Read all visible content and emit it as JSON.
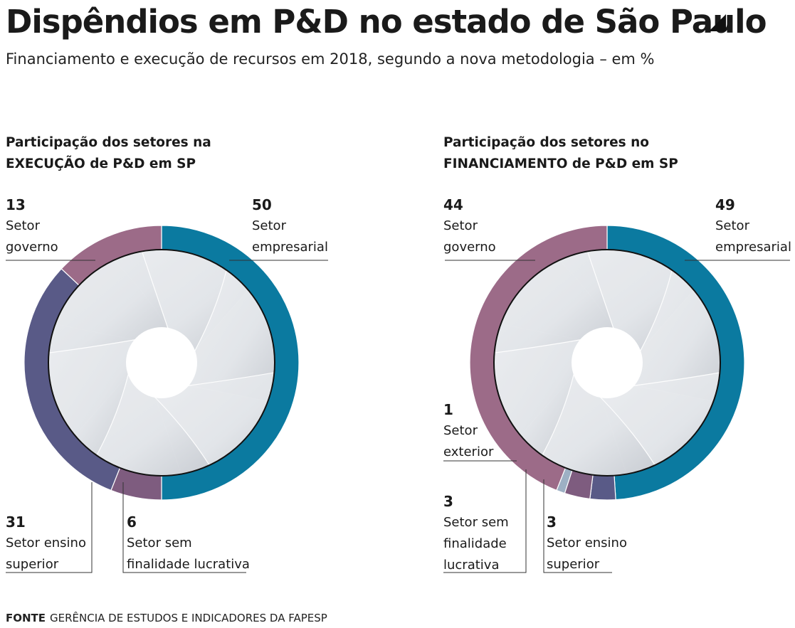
{
  "title": "Dispêndios em P&D no estado de São Paulo",
  "subtitle": "Financiamento e execução de recursos em 2018, segundo a nova metodologia – em %",
  "source_label": "FONTE",
  "source_text": "GERÊNCIA DE ESTUDOS E INDICADORES DA FAPESP",
  "colors": {
    "empresarial": "#0b7aa0",
    "governo": "#9c6b88",
    "ensino_superior": "#595a87",
    "sem_fins": "#7e5c7f",
    "exterior": "#9db0c4"
  },
  "chart_data": [
    {
      "type": "pie",
      "title_line1": "Participação dos setores na",
      "title_line2": "EXECUÇÃO de P&D em SP",
      "slices": [
        {
          "key": "empresarial",
          "value": 50,
          "label_line1": "Setor",
          "label_line2": "empresarial"
        },
        {
          "key": "sem_fins",
          "value": 6,
          "label_line1": "Setor sem",
          "label_line2": "finalidade lucrativa"
        },
        {
          "key": "ensino_superior",
          "value": 31,
          "label_line1": "Setor ensino",
          "label_line2": "superior"
        },
        {
          "key": "governo",
          "value": 13,
          "label_line1": "Setor",
          "label_line2": "governo"
        }
      ]
    },
    {
      "type": "pie",
      "title_line1": "Participação dos setores no",
      "title_line2": "FINANCIAMENTO de P&D em SP",
      "slices": [
        {
          "key": "empresarial",
          "value": 49,
          "label_line1": "Setor",
          "label_line2": "empresarial"
        },
        {
          "key": "ensino_superior",
          "value": 3,
          "label_line1": "Setor ensino",
          "label_line2": "superior"
        },
        {
          "key": "sem_fins",
          "value": 3,
          "label_line1": "Setor sem",
          "label_line2": "finalidade",
          "label_line3": "lucrativa"
        },
        {
          "key": "exterior",
          "value": 1,
          "label_line1": "Setor",
          "label_line2": "exterior"
        },
        {
          "key": "governo",
          "value": 44,
          "label_line1": "Setor",
          "label_line2": "governo"
        }
      ]
    }
  ]
}
